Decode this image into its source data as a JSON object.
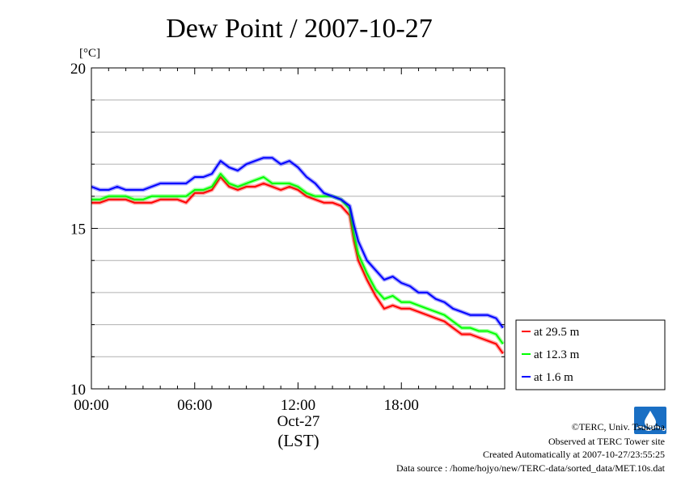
{
  "chart_data": {
    "type": "line",
    "title": "Dew Point / 2007-10-27",
    "ylabel": "[°C]",
    "xlabel": "(LST)",
    "date_label": "Oct-27",
    "x_unit": "hour",
    "xlim": [
      0,
      24
    ],
    "ylim": [
      10,
      20
    ],
    "x_ticks": [
      0,
      6,
      12,
      18
    ],
    "x_tick_labels": [
      "00:00",
      "06:00",
      "12:00",
      "18:00"
    ],
    "y_ticks": [
      10,
      15,
      20
    ],
    "y_tick_labels": [
      "10",
      "15",
      "20"
    ],
    "y_minor_step": 1,
    "grid": true,
    "legend_position": "right-bottom-outside",
    "x": [
      0,
      0.5,
      1,
      1.5,
      2,
      2.5,
      3,
      3.5,
      4,
      4.5,
      5,
      5.5,
      6,
      6.5,
      7,
      7.5,
      8,
      8.5,
      9,
      9.5,
      10,
      10.5,
      11,
      11.5,
      12,
      12.5,
      13,
      13.5,
      14,
      14.5,
      15,
      15.25,
      15.5,
      16,
      16.5,
      17,
      17.5,
      18,
      18.5,
      19,
      19.5,
      20,
      20.5,
      21,
      21.5,
      22,
      22.5,
      23,
      23.5,
      23.9
    ],
    "series": [
      {
        "name": "at 29.5 m",
        "color": "#ff0000",
        "values": [
          15.8,
          15.8,
          15.9,
          15.9,
          15.9,
          15.8,
          15.8,
          15.8,
          15.9,
          15.9,
          15.9,
          15.8,
          16.1,
          16.1,
          16.2,
          16.6,
          16.3,
          16.2,
          16.3,
          16.3,
          16.4,
          16.3,
          16.2,
          16.3,
          16.2,
          16.0,
          15.9,
          15.8,
          15.8,
          15.7,
          15.4,
          14.6,
          14.0,
          13.4,
          12.9,
          12.5,
          12.6,
          12.5,
          12.5,
          12.4,
          12.3,
          12.2,
          12.1,
          11.9,
          11.7,
          11.7,
          11.6,
          11.5,
          11.4,
          11.1
        ]
      },
      {
        "name": "at 12.3 m",
        "color": "#00ff00",
        "values": [
          15.9,
          15.9,
          16.0,
          16.0,
          16.0,
          15.9,
          15.9,
          16.0,
          16.0,
          16.0,
          16.0,
          16.0,
          16.2,
          16.2,
          16.3,
          16.7,
          16.4,
          16.3,
          16.4,
          16.5,
          16.6,
          16.4,
          16.4,
          16.4,
          16.3,
          16.1,
          16.0,
          16.0,
          16.0,
          15.9,
          15.6,
          14.8,
          14.2,
          13.6,
          13.1,
          12.8,
          12.9,
          12.7,
          12.7,
          12.6,
          12.5,
          12.4,
          12.3,
          12.1,
          11.9,
          11.9,
          11.8,
          11.8,
          11.7,
          11.4
        ]
      },
      {
        "name": "at 1.6 m",
        "color": "#0000ff",
        "values": [
          16.3,
          16.2,
          16.2,
          16.3,
          16.2,
          16.2,
          16.2,
          16.3,
          16.4,
          16.4,
          16.4,
          16.4,
          16.6,
          16.6,
          16.7,
          17.1,
          16.9,
          16.8,
          17.0,
          17.1,
          17.2,
          17.2,
          17.0,
          17.1,
          16.9,
          16.6,
          16.4,
          16.1,
          16.0,
          15.9,
          15.7,
          15.1,
          14.6,
          14.0,
          13.7,
          13.4,
          13.5,
          13.3,
          13.2,
          13.0,
          13.0,
          12.8,
          12.7,
          12.5,
          12.4,
          12.3,
          12.3,
          12.3,
          12.2,
          11.9
        ]
      }
    ]
  },
  "footer": {
    "copyright": "©TERC, Univ. Tsukuba",
    "observed": "Observed at TERC Tower site",
    "created": "Created Automatically at 2007-10-27/23:55:25",
    "source": "Data source : /home/hojyo/new/TERC-data/sorted_data/MET.10s.dat"
  },
  "logo": {
    "text": "TERC",
    "color": "#1a6fc4"
  }
}
